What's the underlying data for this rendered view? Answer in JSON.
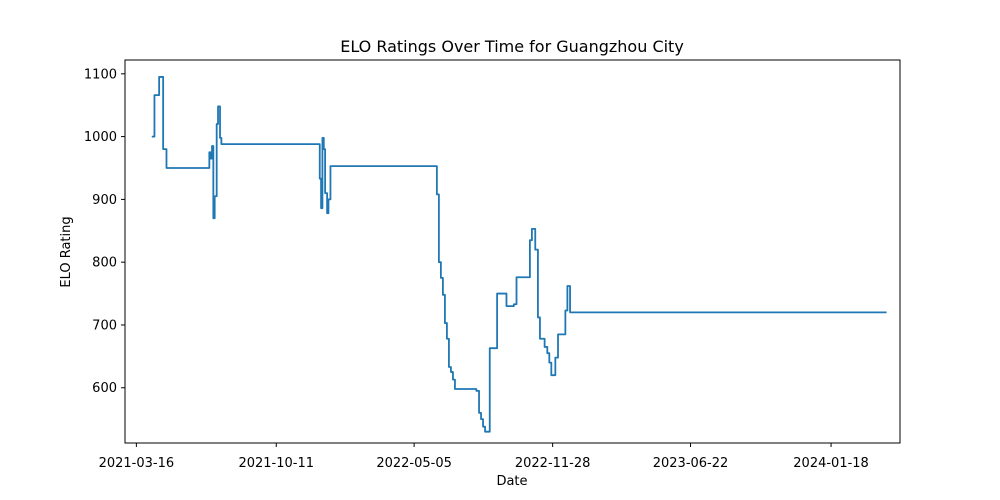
{
  "chart_data": {
    "type": "line",
    "title": "ELO Ratings Over Time for Guangzhou City",
    "xlabel": "Date",
    "ylabel": "ELO Rating",
    "x_ticks": [
      "2021-03-16",
      "2021-10-11",
      "2022-05-05",
      "2022-11-28",
      "2023-06-22",
      "2024-01-18"
    ],
    "y_ticks": [
      600,
      700,
      800,
      900,
      1000,
      1100
    ],
    "xlim": [
      "2021-02-27",
      "2024-04-30"
    ],
    "ylim": [
      512,
      1122
    ],
    "grid": false,
    "line_color": "#1f77b4",
    "series": [
      {
        "points": [
          [
            "2021-04-08",
            1000
          ],
          [
            "2021-04-12",
            1000
          ],
          [
            "2021-04-12",
            1066
          ],
          [
            "2021-04-19",
            1066
          ],
          [
            "2021-04-19",
            1095
          ],
          [
            "2021-04-25",
            1095
          ],
          [
            "2021-04-25",
            980
          ],
          [
            "2021-04-30",
            980
          ],
          [
            "2021-04-30",
            950
          ],
          [
            "2021-07-03",
            950
          ],
          [
            "2021-07-03",
            975
          ],
          [
            "2021-07-05",
            975
          ],
          [
            "2021-07-05",
            965
          ],
          [
            "2021-07-07",
            965
          ],
          [
            "2021-07-07",
            985
          ],
          [
            "2021-07-09",
            985
          ],
          [
            "2021-07-09",
            870
          ],
          [
            "2021-07-11",
            870
          ],
          [
            "2021-07-11",
            905
          ],
          [
            "2021-07-14",
            905
          ],
          [
            "2021-07-14",
            1020
          ],
          [
            "2021-07-16",
            1020
          ],
          [
            "2021-07-16",
            1048
          ],
          [
            "2021-07-19",
            1048
          ],
          [
            "2021-07-19",
            998
          ],
          [
            "2021-07-21",
            998
          ],
          [
            "2021-07-21",
            988
          ],
          [
            "2021-12-15",
            988
          ],
          [
            "2021-12-15",
            933
          ],
          [
            "2021-12-17",
            933
          ],
          [
            "2021-12-17",
            886
          ],
          [
            "2021-12-19",
            886
          ],
          [
            "2021-12-19",
            998
          ],
          [
            "2021-12-21",
            998
          ],
          [
            "2021-12-21",
            980
          ],
          [
            "2021-12-23",
            980
          ],
          [
            "2021-12-23",
            910
          ],
          [
            "2021-12-26",
            910
          ],
          [
            "2021-12-26",
            878
          ],
          [
            "2021-12-28",
            878
          ],
          [
            "2021-12-28",
            900
          ],
          [
            "2021-12-31",
            900
          ],
          [
            "2021-12-31",
            953
          ],
          [
            "2022-06-08",
            953
          ],
          [
            "2022-06-08",
            908
          ],
          [
            "2022-06-11",
            908
          ],
          [
            "2022-06-11",
            800
          ],
          [
            "2022-06-14",
            800
          ],
          [
            "2022-06-14",
            775
          ],
          [
            "2022-06-17",
            775
          ],
          [
            "2022-06-17",
            748
          ],
          [
            "2022-06-20",
            748
          ],
          [
            "2022-06-20",
            703
          ],
          [
            "2022-06-23",
            703
          ],
          [
            "2022-06-23",
            678
          ],
          [
            "2022-06-26",
            678
          ],
          [
            "2022-06-26",
            633
          ],
          [
            "2022-06-29",
            633
          ],
          [
            "2022-06-29",
            625
          ],
          [
            "2022-07-02",
            625
          ],
          [
            "2022-07-02",
            613
          ],
          [
            "2022-07-05",
            613
          ],
          [
            "2022-07-05",
            598
          ],
          [
            "2022-08-06",
            598
          ],
          [
            "2022-08-06",
            595
          ],
          [
            "2022-08-10",
            595
          ],
          [
            "2022-08-10",
            560
          ],
          [
            "2022-08-13",
            560
          ],
          [
            "2022-08-13",
            550
          ],
          [
            "2022-08-16",
            550
          ],
          [
            "2022-08-16",
            538
          ],
          [
            "2022-08-19",
            538
          ],
          [
            "2022-08-19",
            530
          ],
          [
            "2022-08-26",
            530
          ],
          [
            "2022-08-26",
            663
          ],
          [
            "2022-09-06",
            663
          ],
          [
            "2022-09-06",
            750
          ],
          [
            "2022-09-20",
            750
          ],
          [
            "2022-09-20",
            730
          ],
          [
            "2022-10-01",
            730
          ],
          [
            "2022-10-01",
            733
          ],
          [
            "2022-10-05",
            733
          ],
          [
            "2022-10-05",
            776
          ],
          [
            "2022-10-25",
            776
          ],
          [
            "2022-10-25",
            835
          ],
          [
            "2022-10-28",
            835
          ],
          [
            "2022-10-28",
            853
          ],
          [
            "2022-11-02",
            853
          ],
          [
            "2022-11-02",
            820
          ],
          [
            "2022-11-06",
            820
          ],
          [
            "2022-11-06",
            712
          ],
          [
            "2022-11-09",
            712
          ],
          [
            "2022-11-09",
            678
          ],
          [
            "2022-11-16",
            678
          ],
          [
            "2022-11-16",
            665
          ],
          [
            "2022-11-20",
            665
          ],
          [
            "2022-11-20",
            655
          ],
          [
            "2022-11-23",
            655
          ],
          [
            "2022-11-23",
            640
          ],
          [
            "2022-11-26",
            640
          ],
          [
            "2022-11-26",
            620
          ],
          [
            "2022-12-02",
            620
          ],
          [
            "2022-12-02",
            648
          ],
          [
            "2022-12-06",
            648
          ],
          [
            "2022-12-06",
            685
          ],
          [
            "2022-12-17",
            685
          ],
          [
            "2022-12-17",
            723
          ],
          [
            "2022-12-20",
            723
          ],
          [
            "2022-12-20",
            762
          ],
          [
            "2022-12-24",
            762
          ],
          [
            "2022-12-24",
            720
          ],
          [
            "2024-04-10",
            720
          ]
        ]
      }
    ]
  }
}
